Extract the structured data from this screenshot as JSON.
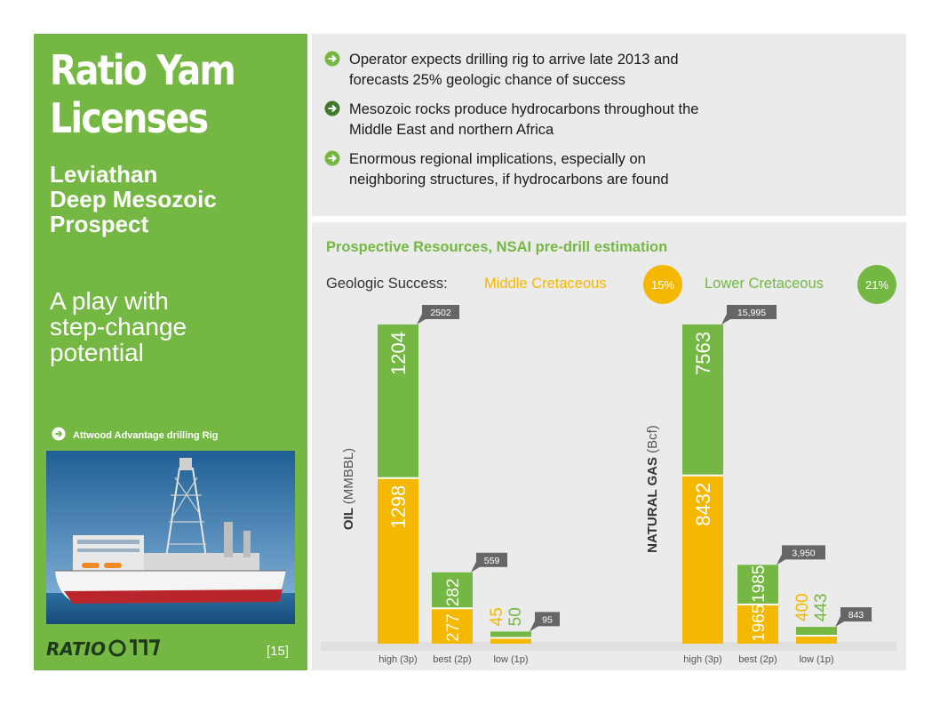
{
  "left": {
    "title_line1": "Ratio Yam",
    "title_line2": "Licenses",
    "subtitle_line1": "Leviathan",
    "subtitle_line2": "Deep Mesozoic",
    "subtitle_line3": "Prospect",
    "tagline_line1": "A play with",
    "tagline_line2": "step-change",
    "tagline_line3": "potential",
    "rig_label": "Attwood Advantage drilling Rig",
    "page_ref": "[15]",
    "logo_text": "RATIO"
  },
  "bullets": [
    {
      "line1": "Operator expects drilling rig to arrive late 2013 and",
      "line2": "forecasts 25% geologic chance of success"
    },
    {
      "line1": "Mesozoic rocks produce hydrocarbons throughout the",
      "line2": "Middle East and northern Africa"
    },
    {
      "line1": "Enormous regional implications, especially on",
      "line2": "neighboring structures, if hydrocarbons are found"
    }
  ],
  "colors": {
    "green": "#74b843",
    "yellow": "#f5b800",
    "panel_bg": "#ebebeb",
    "callout": "#666666"
  },
  "chart_header": {
    "title": "Prospective Resources, NSAI pre-drill estimation",
    "geo_label": "Geologic Success:",
    "middle_label": "Middle Cretaceous",
    "middle_pct": "15%",
    "lower_label": "Lower Cretaceous",
    "lower_pct": "21%"
  },
  "chart_data": [
    {
      "type": "bar",
      "stacked": true,
      "ylabel_bold": "OIL",
      "ylabel_unit": "(MMBBL)",
      "categories": [
        "high (3p)",
        "best (2p)",
        "low (1p)"
      ],
      "series": [
        {
          "name": "Middle Cretaceous",
          "values": [
            1298,
            277,
            45
          ]
        },
        {
          "name": "Lower Cretaceous",
          "values": [
            1204,
            282,
            50
          ]
        }
      ],
      "totals": [
        "2502",
        "559",
        "95"
      ],
      "value_labels": {
        "middle": [
          "1298",
          "277",
          "45"
        ],
        "lower": [
          "1204",
          "282",
          "50"
        ]
      }
    },
    {
      "type": "bar",
      "stacked": true,
      "ylabel_bold": "NATURAL GAS",
      "ylabel_unit": "(Bcf)",
      "categories": [
        "high (3p)",
        "best (2p)",
        "low (1p)"
      ],
      "series": [
        {
          "name": "Middle Cretaceous",
          "values": [
            8432,
            1965,
            400
          ]
        },
        {
          "name": "Lower Cretaceous",
          "values": [
            7563,
            1985,
            443
          ]
        }
      ],
      "totals": [
        "15,995",
        "3,950",
        "843"
      ],
      "value_labels": {
        "middle": [
          "8432",
          "1965",
          "400"
        ],
        "lower": [
          "7563",
          "1985",
          "443"
        ]
      }
    }
  ]
}
